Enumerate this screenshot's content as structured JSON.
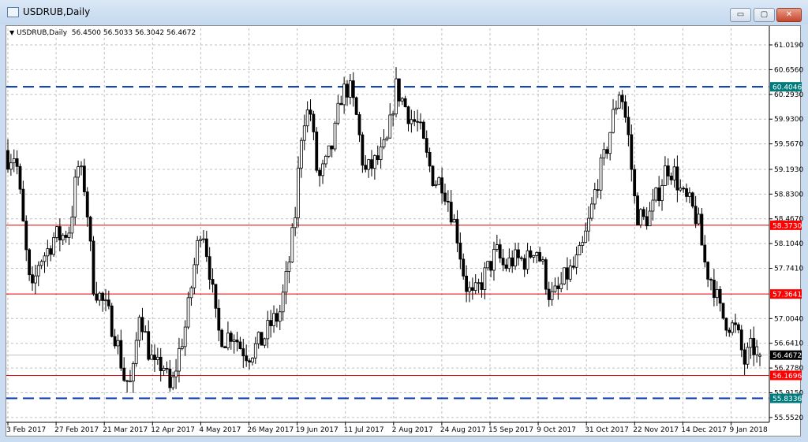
{
  "window": {
    "title": "USDRUB,Daily",
    "buttons": [
      "minimize",
      "maximize",
      "close"
    ],
    "minimize_glyph": "▭",
    "maximize_glyph": "▢",
    "close_glyph": "✕"
  },
  "chart_header": {
    "symbol": "USDRUB,Daily",
    "ohlc": "56.4500 56.5033 56.3042 56.4672"
  },
  "chart_data": {
    "type": "candlestick",
    "symbol": "USDRUB",
    "timeframe": "Daily",
    "last": {
      "open": 56.45,
      "high": 56.5033,
      "low": 56.3042,
      "close": 56.4672
    },
    "ylim": [
      55.552,
      61.019
    ],
    "y_ticks": [
      "61.0190",
      "60.6560",
      "60.2930",
      "59.9300",
      "59.5670",
      "59.1930",
      "58.8300",
      "58.4670",
      "58.1040",
      "57.7410",
      "57.0040",
      "56.6410",
      "56.2780",
      "55.9150",
      "55.5520"
    ],
    "x_ticks": [
      "3 Feb 2017",
      "27 Feb 2017",
      "21 Mar 2017",
      "12 Apr 2017",
      "4 May 2017",
      "26 May 2017",
      "19 Jun 2017",
      "11 Jul 2017",
      "2 Aug 2017",
      "24 Aug 2017",
      "15 Sep 2017",
      "9 Oct 2017",
      "31 Oct 2017",
      "22 Nov 2017",
      "14 Dec 2017",
      "9 Jan 2018"
    ],
    "grid": true,
    "approx_close_path": [
      59.37,
      59.42,
      58.33,
      57.29,
      57.86,
      57.98,
      58.21,
      58.21,
      58.33,
      59.25,
      58.9,
      57.52,
      57.29,
      57.05,
      56.71,
      56.13,
      56.01,
      57.17,
      56.59,
      56.24,
      56.36,
      55.9,
      56.48,
      56.94,
      57.75,
      58.44,
      57.75,
      56.82,
      56.71,
      56.82,
      56.59,
      56.48,
      56.59,
      56.71,
      56.94,
      57.05,
      57.63,
      58.44,
      59.94,
      60.06,
      59.02,
      59.25,
      59.6,
      60.29,
      60.41,
      59.94,
      59.13,
      59.25,
      59.37,
      59.6,
      60.41,
      60.18,
      59.94,
      59.83,
      59.37,
      59.02,
      59.02,
      58.67,
      58.21,
      57.52,
      57.29,
      57.52,
      57.75,
      57.98,
      57.75,
      57.86,
      57.86,
      57.86,
      58.09,
      57.75,
      57.29,
      57.4,
      57.63,
      57.75,
      57.98,
      58.44,
      59.02,
      59.37,
      59.94,
      60.41,
      59.71,
      58.56,
      58.44,
      58.56,
      58.9,
      59.25,
      59.13,
      58.79,
      58.67,
      58.44,
      57.75,
      57.52,
      57.05,
      56.94,
      56.82,
      56.36,
      56.59,
      56.4672
    ],
    "levels": [
      {
        "price": 60.4046,
        "label": "60.4046",
        "style": "dashed",
        "color": "#0033aa",
        "label_bg": "#007b7b"
      },
      {
        "price": 58.373,
        "label": "58.3730",
        "style": "solid",
        "color": "#e00000",
        "label_bg": "#ff0000"
      },
      {
        "price": 57.3641,
        "label": "57.3641",
        "style": "solid",
        "color": "#e00000",
        "label_bg": "#ff0000"
      },
      {
        "price": 56.4672,
        "label": "56.4672",
        "style": "solid",
        "color": "#c0c0c0",
        "label_bg": "#000000"
      },
      {
        "price": 56.1696,
        "label": "56.1696",
        "style": "solid",
        "color": "#e00000",
        "label_bg": "#ff0000"
      },
      {
        "price": 55.8336,
        "label": "55.8336",
        "style": "dashed",
        "color": "#0033aa",
        "label_bg": "#007b7b"
      }
    ],
    "colors": {
      "bull_body": "#ffffff",
      "bear_body": "#000000",
      "candle_outline": "#000000",
      "grid": "#c0c0c0"
    }
  }
}
